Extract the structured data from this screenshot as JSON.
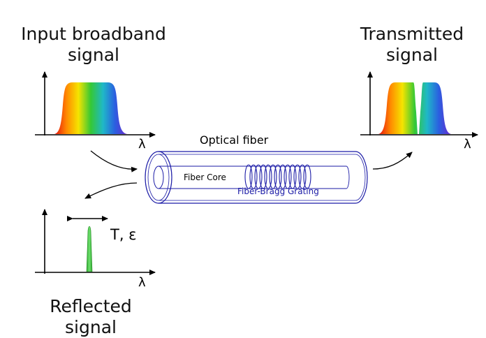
{
  "labels": {
    "input_line1": "Input broadband",
    "input_line2": "signal",
    "transmitted_line1": "Transmitted",
    "transmitted_line2": "signal",
    "reflected_line1": "Reflected",
    "reflected_line2": "signal",
    "optical_fiber": "Optical fiber",
    "fiber_core": "Fiber Core",
    "grating": "Fiber-Bragg Grating",
    "tuning": "T, ε",
    "lambda": "λ"
  },
  "colors": {
    "fiber": "#1a1aa6",
    "reflected_peak": "#3ec43e",
    "axis": "#000000"
  },
  "spectrum_colors": [
    "#e81010",
    "#ff8c00",
    "#f5e400",
    "#35c835",
    "#1fb8c8",
    "#2a60e0",
    "#6a2ad0"
  ]
}
